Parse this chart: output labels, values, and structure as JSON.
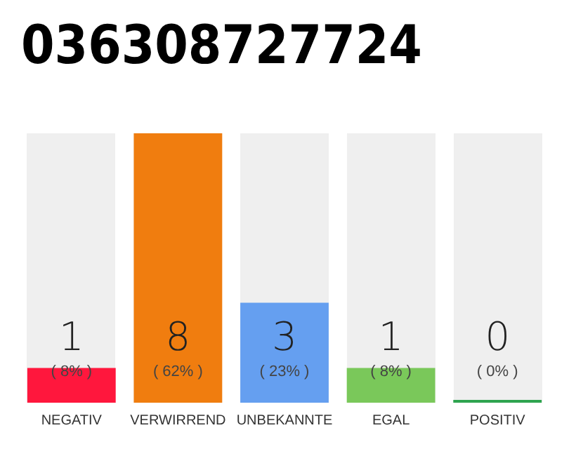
{
  "chart_data": {
    "type": "bar",
    "title": "036308727724",
    "categories": [
      "NEGATIV",
      "VERWIRREND",
      "UNBEKANNTE",
      "EGAL",
      "POSITIV"
    ],
    "values": [
      8,
      62,
      23,
      8,
      0
    ],
    "colors": [
      "#ff173d",
      "#f07d0f",
      "#659ff0",
      "#7ac85a",
      "#2ea44f"
    ],
    "value_labels": [
      "1\n( 8% )",
      "8\n( 62% )",
      "3\n( 23% )",
      "1\n( 8% )",
      "0\n( 0% )"
    ],
    "grid": false
  }
}
